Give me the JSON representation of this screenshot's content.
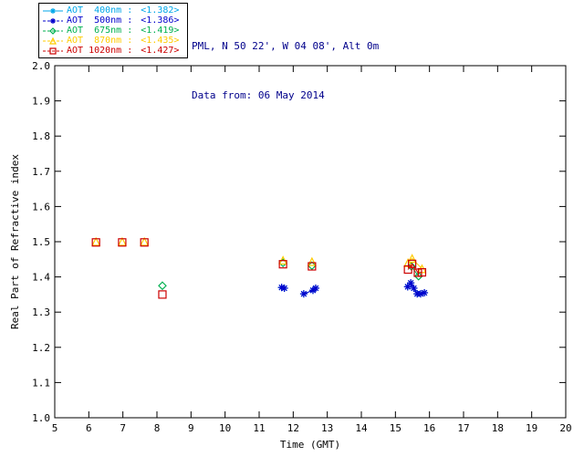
{
  "header": {
    "location": "PML, N 50 22', W 04 08', Alt 0m",
    "date_line": "Data from: 06 May 2014",
    "text_color": "#00008b"
  },
  "legend": {
    "border_color": "#000000"
  },
  "chart_data": {
    "type": "scatter",
    "title": "",
    "xlabel": "Time (GMT)",
    "ylabel": "Real Part of Refractive index",
    "xlim": [
      5,
      20
    ],
    "ylim": [
      1.0,
      2.0
    ],
    "xticks": [
      5,
      6,
      7,
      8,
      9,
      10,
      11,
      12,
      13,
      14,
      15,
      16,
      17,
      18,
      19,
      20
    ],
    "yticks": [
      1.0,
      1.1,
      1.2,
      1.3,
      1.4,
      1.5,
      1.6,
      1.7,
      1.8,
      1.9,
      2.0
    ],
    "grid": false,
    "legend_position": "top-left-outside",
    "series": [
      {
        "name": "AOT 400nm",
        "legend_label": "AOT  400nm : ",
        "legend_value": "<1.382>",
        "color": "#00a6e8",
        "marker": "asterisk",
        "linestyle": "solid",
        "points": [
          [
            11.66,
            1.37
          ],
          [
            11.74,
            1.368
          ],
          [
            12.31,
            1.352
          ],
          [
            12.58,
            1.362
          ],
          [
            12.66,
            1.368
          ],
          [
            15.36,
            1.372
          ],
          [
            15.45,
            1.383
          ],
          [
            15.54,
            1.368
          ],
          [
            15.64,
            1.352
          ],
          [
            15.74,
            1.352
          ],
          [
            15.85,
            1.355
          ]
        ]
      },
      {
        "name": "AOT 500nm",
        "legend_label": "AOT  500nm : ",
        "legend_value": "<1.386>",
        "color": "#0000cc",
        "marker": "asterisk",
        "linestyle": "dashed",
        "points": [
          [
            11.66,
            1.37
          ],
          [
            11.74,
            1.368
          ],
          [
            12.31,
            1.352
          ],
          [
            12.58,
            1.362
          ],
          [
            12.66,
            1.368
          ],
          [
            15.36,
            1.372
          ],
          [
            15.45,
            1.383
          ],
          [
            15.54,
            1.368
          ],
          [
            15.64,
            1.352
          ],
          [
            15.74,
            1.352
          ],
          [
            15.85,
            1.355
          ]
        ]
      },
      {
        "name": "AOT 675nm",
        "legend_label": "AOT  675nm : ",
        "legend_value": "<1.419>",
        "color": "#00b050",
        "marker": "diamond",
        "linestyle": "dashed",
        "points": [
          [
            8.16,
            1.375
          ],
          [
            11.7,
            1.44
          ],
          [
            12.55,
            1.432
          ],
          [
            15.47,
            1.43
          ],
          [
            15.68,
            1.402
          ]
        ]
      },
      {
        "name": "AOT 870nm",
        "legend_label": "AOT  870nm : ",
        "legend_value": "<1.435>",
        "color": "#ffcc00",
        "marker": "triangle",
        "linestyle": "dashed",
        "points": [
          [
            6.21,
            1.5
          ],
          [
            6.98,
            1.5
          ],
          [
            7.63,
            1.5
          ],
          [
            11.7,
            1.447
          ],
          [
            12.55,
            1.443
          ],
          [
            15.37,
            1.44
          ],
          [
            15.49,
            1.452
          ],
          [
            15.78,
            1.423
          ]
        ]
      },
      {
        "name": "AOT 1020nm",
        "legend_label": "AOT 1020nm : ",
        "legend_value": "<1.427>",
        "color": "#cc0000",
        "marker": "square",
        "linestyle": "dashed",
        "points": [
          [
            6.21,
            1.498
          ],
          [
            6.98,
            1.498
          ],
          [
            7.63,
            1.498
          ],
          [
            8.16,
            1.35
          ],
          [
            11.7,
            1.436
          ],
          [
            12.55,
            1.43
          ],
          [
            15.37,
            1.421
          ],
          [
            15.49,
            1.437
          ],
          [
            15.66,
            1.412
          ],
          [
            15.78,
            1.413
          ]
        ]
      }
    ]
  }
}
